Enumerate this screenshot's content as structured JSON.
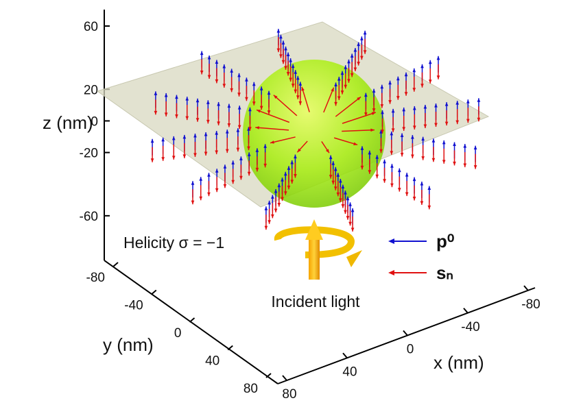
{
  "chart_data": {
    "type": "vector3d",
    "xlabel": "x (nm)",
    "ylabel": "y (nm)",
    "zlabel": "z (nm)",
    "xlim": [
      80,
      -80
    ],
    "xticks": [
      80,
      40,
      0,
      -40,
      -80
    ],
    "ylim": [
      -80,
      80
    ],
    "yticks": [
      -80,
      -40,
      0,
      40,
      80
    ],
    "zlim": [
      -80,
      60
    ],
    "zticks": [
      60,
      20,
      0,
      -20,
      -60
    ],
    "annotations": [
      "Helicity σ = −1",
      "Incident light"
    ],
    "series": [
      {
        "name": "p⁰",
        "color": "#1010d0"
      },
      {
        "name": "sₙ",
        "color": "#e01010"
      }
    ]
  }
}
